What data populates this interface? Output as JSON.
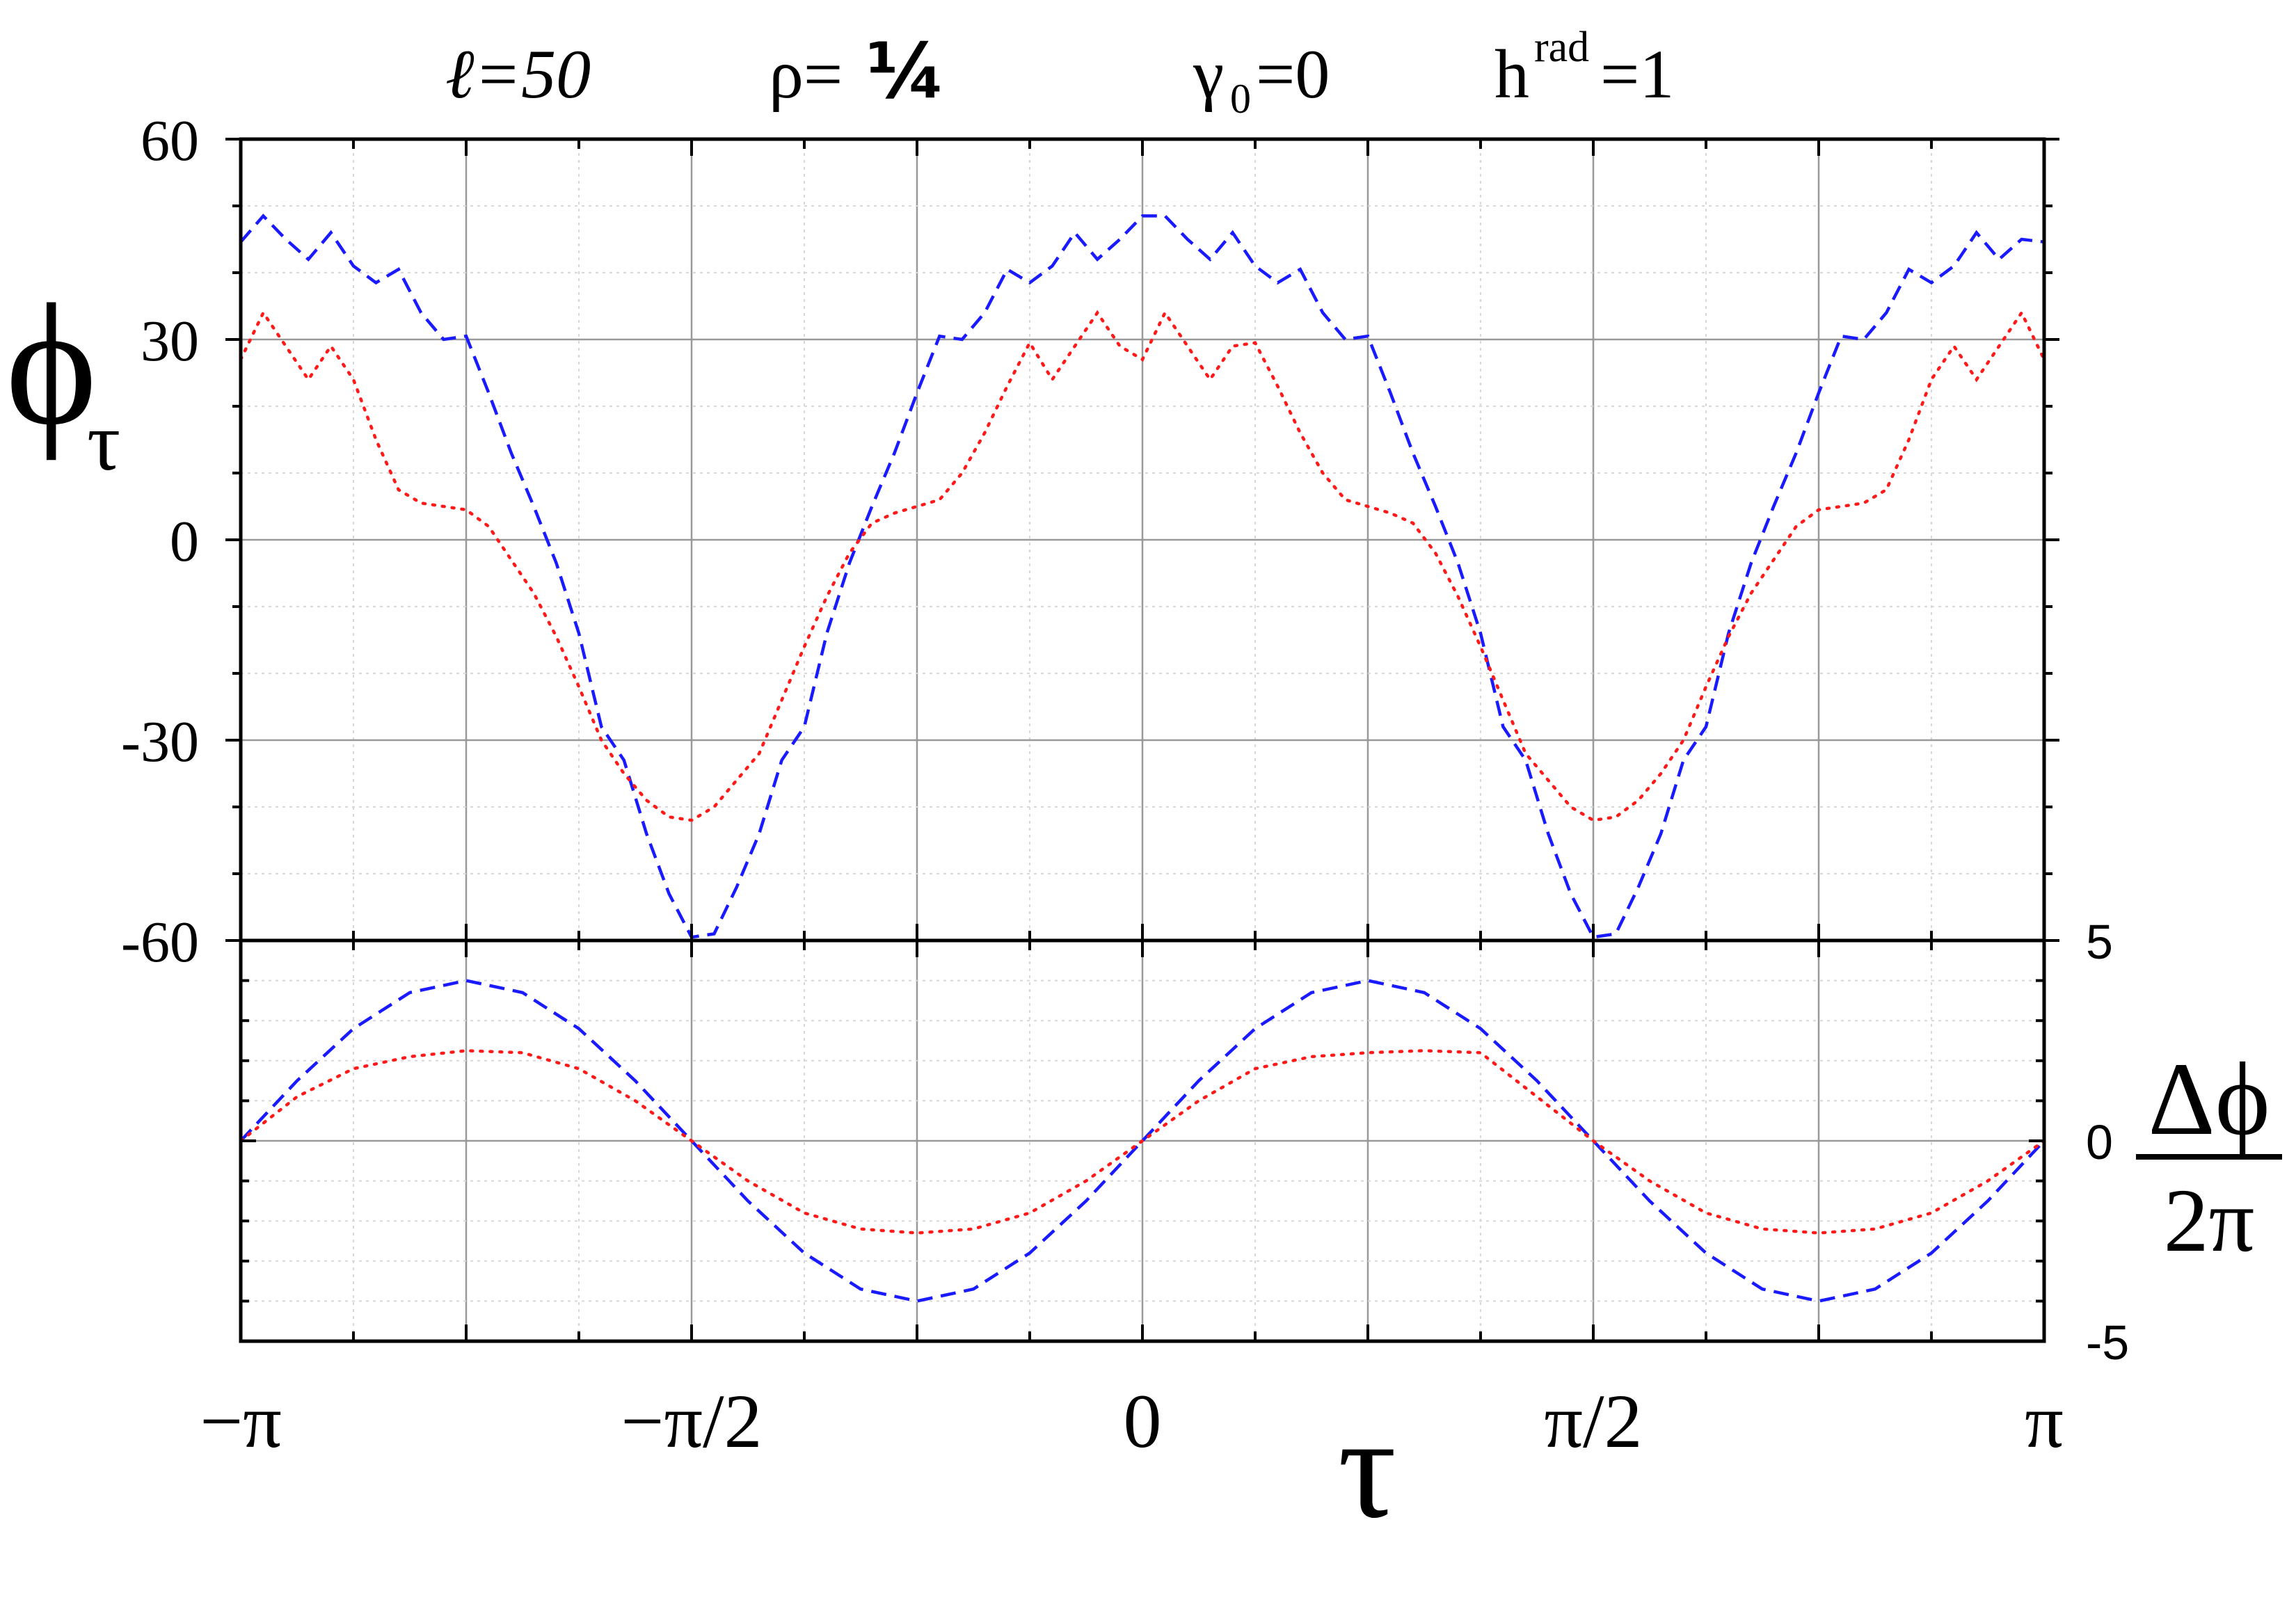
{
  "header": {
    "ell": "ℓ=50",
    "rho_prefix": "ρ=",
    "rho_value": "¼",
    "gamma_base": "γ",
    "gamma_sub": "0",
    "gamma_eq": "=0",
    "h_base": "h",
    "h_sup": "rad",
    "h_eq": "=1"
  },
  "axes": {
    "top_ylabel_main": "ϕ",
    "top_ylabel_sub": "τ",
    "bottom_ylabel_num": "Δϕ",
    "bottom_ylabel_den": "2π",
    "xlabel": "τ"
  },
  "colors": {
    "series_blue": "#1a1aff",
    "series_red": "#ff1a1a",
    "axis": "#000000",
    "grid_major": "#999999",
    "grid_minor": "#d8d8d8"
  },
  "chart_data": [
    {
      "type": "line",
      "title": "",
      "xlabel": "τ",
      "ylabel": "ϕτ",
      "xlim": [
        -3.14159,
        3.14159
      ],
      "ylim": [
        -60,
        60
      ],
      "xticks": [
        -3.14159,
        -1.5708,
        0,
        1.5708,
        3.14159
      ],
      "xtick_labels": [
        "−π",
        "−π/2",
        "0",
        "π/2",
        "π"
      ],
      "yticks": [
        -60,
        -30,
        0,
        30,
        60
      ],
      "ytick_labels": [
        "-60",
        "-30",
        "0",
        "30",
        "60"
      ],
      "grid": true,
      "series": [
        {
          "style": "dashed",
          "color": "#1a1aff",
          "x": [
            -3.14159,
            -3.06305,
            -2.98451,
            -2.90597,
            -2.82743,
            -2.74889,
            -2.67035,
            -2.59181,
            -2.51327,
            -2.43473,
            -2.35619,
            -2.27765,
            -2.19911,
            -2.12057,
            -2.04204,
            -1.9635,
            -1.88496,
            -1.80642,
            -1.72788,
            -1.64934,
            -1.5708,
            -1.49226,
            -1.41372,
            -1.33518,
            -1.25664,
            -1.1781,
            -1.09956,
            -1.02102,
            -0.94248,
            -0.86394,
            -0.7854,
            -0.70686,
            -0.62832,
            -0.54978,
            -0.47124,
            -0.3927,
            -0.31416,
            -0.23562,
            -0.15708,
            -0.07854,
            0,
            0.07854,
            0.15708,
            0.23562,
            0.31416,
            0.3927,
            0.47124,
            0.54978,
            0.62832,
            0.70686,
            0.7854,
            0.86394,
            0.94248,
            1.02102,
            1.09956,
            1.1781,
            1.25664,
            1.33518,
            1.41372,
            1.49226,
            1.5708,
            1.64934,
            1.72788,
            1.80642,
            1.88496,
            1.9635,
            2.04204,
            2.12057,
            2.19911,
            2.27765,
            2.35619,
            2.43473,
            2.51327,
            2.59181,
            2.67035,
            2.74889,
            2.82743,
            2.90597,
            2.98451,
            3.06305,
            3.14159
          ],
          "y": [
            44.6,
            48.5,
            45.0,
            42.0,
            46.0,
            41.0,
            38.5,
            40.5,
            34.0,
            30.0,
            30.5,
            22.0,
            13.0,
            5.0,
            -3.5,
            -14.0,
            -28.0,
            -33.0,
            -44.0,
            -53.0,
            -59.5,
            -59.0,
            -52.0,
            -44.0,
            -33.0,
            -28.0,
            -14.0,
            -3.5,
            5.0,
            13.0,
            22.0,
            30.5,
            30.0,
            34.0,
            40.5,
            38.5,
            41.0,
            46.0,
            42.0,
            45.0,
            48.5,
            48.5,
            45.0,
            42.0,
            46.0,
            41.0,
            38.5,
            40.5,
            34.0,
            30.0,
            30.5,
            22.0,
            13.0,
            5.0,
            -3.5,
            -14.0,
            -28.0,
            -33.0,
            -44.0,
            -53.0,
            -59.5,
            -59.0,
            -52.0,
            -44.0,
            -33.0,
            -28.0,
            -14.0,
            -3.5,
            5.0,
            13.0,
            22.0,
            30.5,
            30.0,
            34.0,
            40.5,
            38.5,
            41.0,
            46.0,
            42.0,
            45.0,
            44.6
          ]
        },
        {
          "style": "dotted",
          "color": "#ff1a1a",
          "x": [
            -3.14159,
            -3.06305,
            -2.98451,
            -2.90597,
            -2.82743,
            -2.74889,
            -2.67035,
            -2.59181,
            -2.51327,
            -2.43473,
            -2.35619,
            -2.27765,
            -2.19911,
            -2.12057,
            -2.04204,
            -1.9635,
            -1.88496,
            -1.80642,
            -1.72788,
            -1.64934,
            -1.5708,
            -1.49226,
            -1.41372,
            -1.33518,
            -1.25664,
            -1.1781,
            -1.09956,
            -1.02102,
            -0.94248,
            -0.86394,
            -0.7854,
            -0.70686,
            -0.62832,
            -0.54978,
            -0.47124,
            -0.3927,
            -0.31416,
            -0.23562,
            -0.15708,
            -0.07854,
            0,
            0.07854,
            0.15708,
            0.23562,
            0.31416,
            0.3927,
            0.47124,
            0.54978,
            0.62832,
            0.70686,
            0.7854,
            0.86394,
            0.94248,
            1.02102,
            1.09956,
            1.1781,
            1.25664,
            1.33518,
            1.41372,
            1.49226,
            1.5708,
            1.64934,
            1.72788,
            1.80642,
            1.88496,
            1.9635,
            2.04204,
            2.12057,
            2.19911,
            2.27765,
            2.35619,
            2.43473,
            2.51327,
            2.59181,
            2.67035,
            2.74889,
            2.82743,
            2.90597,
            2.98451,
            3.06305,
            3.14159
          ],
          "y": [
            27.0,
            34.0,
            29.0,
            24.0,
            29.0,
            24.0,
            15.0,
            7.5,
            5.5,
            5.0,
            4.5,
            2.0,
            -3.0,
            -8.0,
            -14.5,
            -22.0,
            -30.0,
            -35.0,
            -39.0,
            -41.5,
            -42.0,
            -40.0,
            -36.0,
            -32.0,
            -24.0,
            -16.0,
            -8.5,
            -2.0,
            2.5,
            4.0,
            5.0,
            6.0,
            10.0,
            16.0,
            23.0,
            29.5,
            24.0,
            29.0,
            34.0,
            29.0,
            27.0,
            34.0,
            29.0,
            24.0,
            29.0,
            29.5,
            23.0,
            16.0,
            10.0,
            6.0,
            5.0,
            4.0,
            2.5,
            -2.0,
            -8.5,
            -16.0,
            -24.0,
            -32.0,
            -36.0,
            -40.0,
            -42.0,
            -41.5,
            -39.0,
            -35.0,
            -30.0,
            -22.0,
            -14.5,
            -8.0,
            -3.0,
            2.0,
            4.5,
            5.0,
            5.5,
            7.5,
            15.0,
            24.0,
            29.0,
            24.0,
            29.0,
            34.0,
            27.0
          ]
        }
      ]
    },
    {
      "type": "line",
      "title": "",
      "xlabel": "τ",
      "ylabel": "Δϕ/2π",
      "xlim": [
        -3.14159,
        3.14159
      ],
      "ylim": [
        -5,
        5
      ],
      "yticks": [
        -5,
        0,
        5
      ],
      "ytick_labels": [
        "-5",
        "0",
        "5"
      ],
      "grid": true,
      "series": [
        {
          "style": "dashed",
          "color": "#1a1aff",
          "x": [
            -3.14159,
            -2.94524,
            -2.74889,
            -2.55254,
            -2.35619,
            -2.15984,
            -1.9635,
            -1.76715,
            -1.5708,
            -1.37445,
            -1.1781,
            -0.98175,
            -0.7854,
            -0.58905,
            -0.3927,
            -0.19635,
            0,
            0.19635,
            0.3927,
            0.58905,
            0.7854,
            0.98175,
            1.1781,
            1.37445,
            1.5708,
            1.76715,
            1.9635,
            2.15984,
            2.35619,
            2.55254,
            2.74889,
            2.94524,
            3.14159
          ],
          "y": [
            0,
            1.5,
            2.8,
            3.7,
            4.0,
            3.7,
            2.8,
            1.5,
            0,
            -1.5,
            -2.8,
            -3.7,
            -4.0,
            -3.7,
            -2.8,
            -1.5,
            0,
            1.5,
            2.8,
            3.7,
            4.0,
            3.7,
            2.8,
            1.5,
            0,
            -1.5,
            -2.8,
            -3.7,
            -4.0,
            -3.7,
            -2.8,
            -1.5,
            0
          ]
        },
        {
          "style": "dotted",
          "color": "#ff1a1a",
          "x": [
            -3.14159,
            -2.94524,
            -2.74889,
            -2.55254,
            -2.35619,
            -2.15984,
            -1.9635,
            -1.76715,
            -1.5708,
            -1.37445,
            -1.1781,
            -0.98175,
            -0.7854,
            -0.58905,
            -0.3927,
            -0.19635,
            0,
            0.19635,
            0.3927,
            0.58905,
            0.7854,
            0.98175,
            1.1781,
            1.37445,
            1.5708,
            1.76715,
            1.9635,
            2.15984,
            2.35619,
            2.55254,
            2.74889,
            2.94524,
            3.14159
          ],
          "y": [
            0,
            1.1,
            1.8,
            2.1,
            2.25,
            2.2,
            1.8,
            1.0,
            0,
            -1.0,
            -1.8,
            -2.2,
            -2.3,
            -2.2,
            -1.8,
            -1.0,
            0,
            1.0,
            1.8,
            2.1,
            2.2,
            2.25,
            2.2,
            1.1,
            0,
            -1.0,
            -1.8,
            -2.2,
            -2.3,
            -2.2,
            -1.8,
            -1.0,
            0
          ]
        }
      ]
    }
  ]
}
